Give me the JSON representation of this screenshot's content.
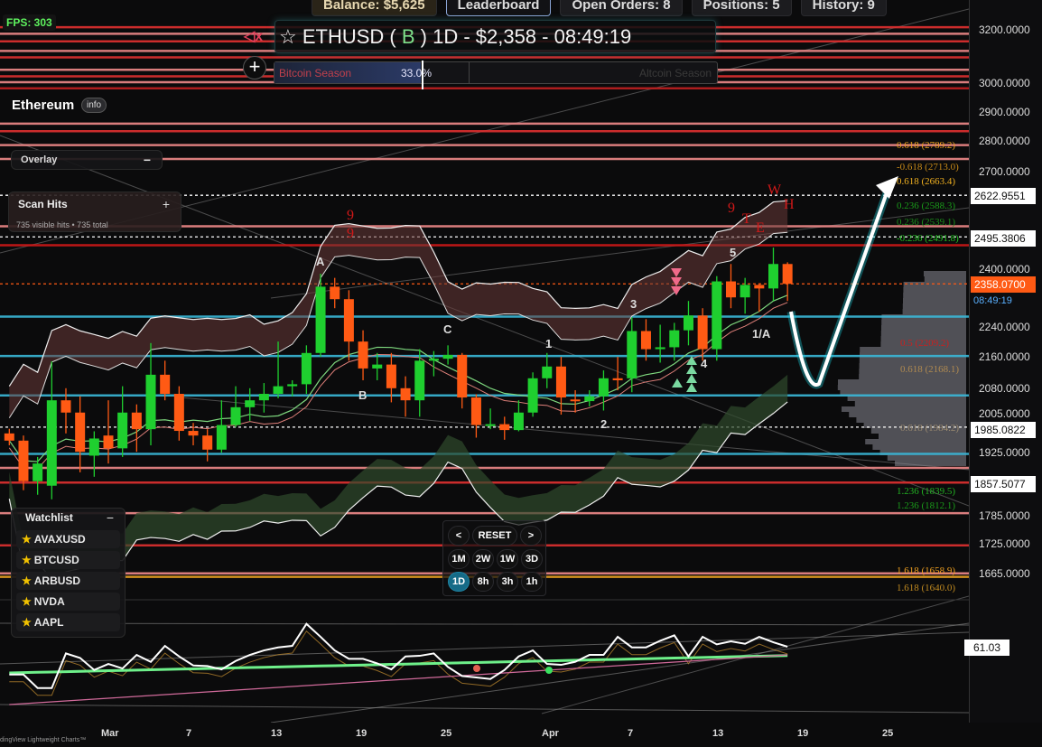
{
  "topbar": {
    "balance": "Balance: $5,625",
    "leaderboard": "Leaderboard",
    "open_orders": "Open Orders: 8",
    "positions": "Positions: 5",
    "history": "History: 9"
  },
  "fps": "FPS: 303",
  "title": {
    "prefix": "☆ ETHUSD ( ",
    "badge": "B",
    "suffix": " ) 1D - $2,358 - 08:49:19"
  },
  "mute_icon": "speaker-muted-icon",
  "season": {
    "left": "Bitcoin Season",
    "percent": "33.0%",
    "right": "Altcoin Season",
    "value": 0.33
  },
  "asset": {
    "name": "Ethereum",
    "info": "info"
  },
  "overlay": {
    "label": "Overlay",
    "toggle": "−"
  },
  "scan": {
    "label": "Scan Hits",
    "toggle": "+",
    "summary": "735 visible hits • 735 total"
  },
  "watchlist": {
    "label": "Watchlist",
    "toggle": "−",
    "items": [
      "AVAXUSD",
      "BTCUSD",
      "ARBUSD",
      "NVDA",
      "AAPL"
    ]
  },
  "timeframes": {
    "prev": "<",
    "reset": "RESET",
    "next": ">",
    "row1": [
      "1M",
      "2W",
      "1W",
      "3D"
    ],
    "row2": [
      "1D",
      "8h",
      "3h",
      "1h"
    ],
    "active": "1D"
  },
  "price_axis": {
    "ticks": [
      "3200.0000",
      "3000.0000",
      "2900.0000",
      "2800.0000",
      "2700.0000",
      "2400.0000",
      "2240.0000",
      "2160.0000",
      "2080.0000",
      "2005.0000",
      "1925.0000",
      "1785.0000",
      "1725.0000",
      "1665.0000"
    ],
    "markers": {
      "m1": "2622.9551",
      "m2": "2495.3806",
      "last": "2358.0700",
      "countdown": "08:49:19",
      "m3": "1985.0822",
      "m4": "1857.5077"
    },
    "oscillator_value": "61.03"
  },
  "date_axis": [
    "Mar",
    "7",
    "13",
    "19",
    "25",
    "Apr",
    "7",
    "13",
    "19",
    "25"
  ],
  "footer": "dingView Lightweight Charts™",
  "fib_labels": [
    {
      "text": "0.618 (2789.2)",
      "color": "#e8a020"
    },
    {
      "text": "-0.618 (2713.0)",
      "color": "#c88a18"
    },
    {
      "text": "0.618 (2663.4)",
      "color": "#f0b020"
    },
    {
      "text": "0.236 (2588.3)",
      "color": "#1a9a1a"
    },
    {
      "text": "0.236 (2539.1)",
      "color": "#1a8a1a"
    },
    {
      "text": "-0.236 (2491.8)",
      "color": "#22c022"
    },
    {
      "text": "0.5 (2209.2)",
      "color": "#c82020"
    },
    {
      "text": "0.618 (2168.1)",
      "color": "#b08a50"
    },
    {
      "text": "0.618 (1984.2)",
      "color": "#9a8a70"
    },
    {
      "text": "1.236 (1839.5)",
      "color": "#22b022"
    },
    {
      "text": "1.236 (1812.1)",
      "color": "#1a9a1a"
    },
    {
      "text": "1.618 (1658.9)",
      "color": "#f0a020"
    },
    {
      "text": "1.618 (1640.0)",
      "color": "#c08a20"
    }
  ],
  "wave_labels": [
    "A",
    "B",
    "C",
    "1",
    "2",
    "3",
    "4",
    "5",
    "1/A"
  ],
  "pattern_labels": [
    "9",
    "9",
    "9",
    "T",
    "E",
    "W",
    "H"
  ],
  "colors": {
    "up": "#1fcf2f",
    "down": "#ff5a14",
    "accent": "#19b5c8",
    "level_red": "#e03030",
    "level_salmon": "#f08a8a",
    "cyan": "#3ab8d8"
  },
  "chart_data": {
    "type": "candlestick",
    "symbol": "ETHUSD",
    "interval": "1D",
    "scale": "log",
    "ylim": [
      1620,
      3250
    ],
    "candles_fields": [
      "date",
      "open",
      "high",
      "low",
      "close"
    ],
    "candles": [
      [
        "Feb 23",
        1970,
        1981,
        1942,
        1953
      ],
      [
        "Feb 24",
        1953,
        1965,
        1840,
        1860
      ],
      [
        "Feb 25",
        1860,
        1915,
        1830,
        1900
      ],
      [
        "Feb 26",
        1850,
        2148,
        1820,
        2050
      ],
      [
        "Feb 27",
        2050,
        2080,
        1970,
        2020
      ],
      [
        "Feb 28",
        2020,
        2060,
        1880,
        1927
      ],
      [
        "Feb 29",
        1918,
        1975,
        1870,
        1958
      ],
      [
        "Mar 1",
        1965,
        2050,
        1900,
        1935
      ],
      [
        "Mar 2",
        1935,
        2085,
        1915,
        2020
      ],
      [
        "Mar 3",
        2020,
        2040,
        1927,
        1980
      ],
      [
        "Mar 4",
        1980,
        2196,
        1942,
        2114
      ],
      [
        "Mar 5",
        2114,
        2150,
        2050,
        2066
      ],
      [
        "Mar 6",
        2066,
        2085,
        1953,
        1976
      ],
      [
        "Mar 7",
        1976,
        1995,
        1942,
        1965
      ],
      [
        "Mar 8",
        1965,
        1980,
        1905,
        1932
      ],
      [
        "Mar 9",
        1932,
        2050,
        1925,
        1990
      ],
      [
        "Mar 10",
        1990,
        2085,
        1985,
        2033
      ],
      [
        "Mar 11",
        2033,
        2080,
        2000,
        2050
      ],
      [
        "Mar 12",
        2050,
        2093,
        2020,
        2066
      ],
      [
        "Mar 13",
        2066,
        2200,
        2055,
        2085
      ],
      [
        "Mar 14",
        2085,
        2100,
        2060,
        2090
      ],
      [
        "Mar 15",
        2090,
        2190,
        2066,
        2170
      ],
      [
        "Mar 16",
        2170,
        2387,
        2160,
        2350
      ],
      [
        "Mar 17",
        2350,
        2375,
        2290,
        2315
      ],
      [
        "Mar 18",
        2315,
        2340,
        2150,
        2200
      ],
      [
        "Mar 19",
        2200,
        2230,
        2100,
        2130
      ],
      [
        "Mar 20",
        2130,
        2170,
        2100,
        2140
      ],
      [
        "Mar 21",
        2140,
        2170,
        2045,
        2080
      ],
      [
        "Mar 22",
        2080,
        2110,
        2010,
        2050
      ],
      [
        "Mar 23",
        2050,
        2180,
        2010,
        2150
      ],
      [
        "Mar 24",
        2150,
        2175,
        2110,
        2155
      ],
      [
        "Mar 25",
        2155,
        2190,
        2140,
        2165
      ],
      [
        "Mar 26",
        2165,
        2170,
        2030,
        2057
      ],
      [
        "Mar 27",
        2057,
        2065,
        1960,
        1990
      ],
      [
        "Mar 28",
        1988,
        2030,
        1980,
        1992
      ],
      [
        "Mar 29",
        1992,
        2010,
        1955,
        1978
      ],
      [
        "Mar 30",
        1978,
        2050,
        1975,
        2020
      ],
      [
        "Mar 31",
        2020,
        2120,
        2010,
        2105
      ],
      [
        "Apr 1",
        2105,
        2170,
        2080,
        2135
      ],
      [
        "Apr 2",
        2135,
        2160,
        2015,
        2057
      ],
      [
        "Apr 3",
        2052,
        2075,
        2020,
        2048
      ],
      [
        "Apr 4",
        2048,
        2075,
        2035,
        2060
      ],
      [
        "Apr 5",
        2060,
        2125,
        2025,
        2105
      ],
      [
        "Apr 6",
        2105,
        2160,
        2075,
        2100
      ],
      [
        "Apr 7",
        2105,
        2265,
        2070,
        2228
      ],
      [
        "Apr 8",
        2228,
        2260,
        2150,
        2180
      ],
      [
        "Apr 9",
        2180,
        2245,
        2145,
        2185
      ],
      [
        "Apr 10",
        2185,
        2250,
        2150,
        2230
      ],
      [
        "Apr 11",
        2230,
        2310,
        2190,
        2270
      ],
      [
        "Apr 12",
        2270,
        2290,
        2150,
        2180
      ],
      [
        "Apr 13",
        2180,
        2380,
        2150,
        2365
      ],
      [
        "Apr 14",
        2365,
        2415,
        2290,
        2320
      ],
      [
        "Apr 15",
        2320,
        2375,
        2275,
        2355
      ],
      [
        "Apr 16",
        2355,
        2360,
        2280,
        2345
      ],
      [
        "Apr 17",
        2345,
        2463,
        2310,
        2415
      ],
      [
        "Apr 18",
        2415,
        2420,
        2310,
        2358
      ]
    ],
    "levels": [
      {
        "price": 3210,
        "color": "#e03030"
      },
      {
        "price": 3185,
        "color": "#f08a8a"
      },
      {
        "price": 3156,
        "color": "#e03030"
      },
      {
        "price": 3120,
        "color": "#f08a8a"
      },
      {
        "price": 3096,
        "color": "#e03030"
      },
      {
        "price": 3050,
        "color": "#f08a8a"
      },
      {
        "price": 3026,
        "color": "#e03030"
      },
      {
        "price": 3005,
        "color": "#f08a8a"
      },
      {
        "price": 2983,
        "color": "#c02020"
      },
      {
        "price": 2859,
        "color": "#f08a8a"
      },
      {
        "price": 2833,
        "color": "#e03030"
      },
      {
        "price": 2786,
        "color": "#f08a8a"
      },
      {
        "price": 2740,
        "color": "#f08a8a"
      },
      {
        "price": 2527,
        "color": "#f08a8a"
      },
      {
        "price": 2470,
        "color": "#d01818"
      },
      {
        "price": 2267,
        "color": "#3ab8d8"
      },
      {
        "price": 2162,
        "color": "#3ab8d8"
      },
      {
        "price": 2062,
        "color": "#3ab8d8"
      },
      {
        "price": 1922,
        "color": "#3ab8d8"
      },
      {
        "price": 1890,
        "color": "#f08a8a"
      },
      {
        "price": 1857,
        "color": "#e03030"
      },
      {
        "price": 1790,
        "color": "#f08a8a"
      },
      {
        "price": 1722,
        "color": "#e03030"
      },
      {
        "price": 1665,
        "color": "#f08a8a"
      },
      {
        "price": 1658,
        "color": "#e8a020"
      }
    ],
    "dotted_levels": [
      {
        "price": 2623,
        "color": "#ffffff"
      },
      {
        "price": 2495,
        "color": "#ffffff"
      },
      {
        "price": 2358,
        "color": "#ff5a14"
      },
      {
        "price": 1985,
        "color": "#ffffff"
      }
    ],
    "oscillator": {
      "last": 61.03,
      "values": [
        42.6,
        42.6,
        33.6,
        33.6,
        56.6,
        53.6,
        45.6,
        49.6,
        46.6,
        55.6,
        51,
        61.6,
        54.6,
        48.6,
        48.2,
        46,
        51.6,
        55.6,
        58.6,
        60.6,
        61.6,
        76.2,
        67.6,
        58.6,
        53,
        53,
        50,
        46,
        54.6,
        55,
        56.6,
        47.6,
        41.6,
        40.6,
        39.6,
        45.6,
        54.6,
        58.6,
        49.6,
        49,
        51,
        55.6,
        55.6,
        67.6,
        60.6,
        60.6,
        65,
        68.6,
        54.6,
        67.6,
        62.6,
        64.6,
        63,
        67.6,
        64,
        61.03
      ]
    }
  }
}
